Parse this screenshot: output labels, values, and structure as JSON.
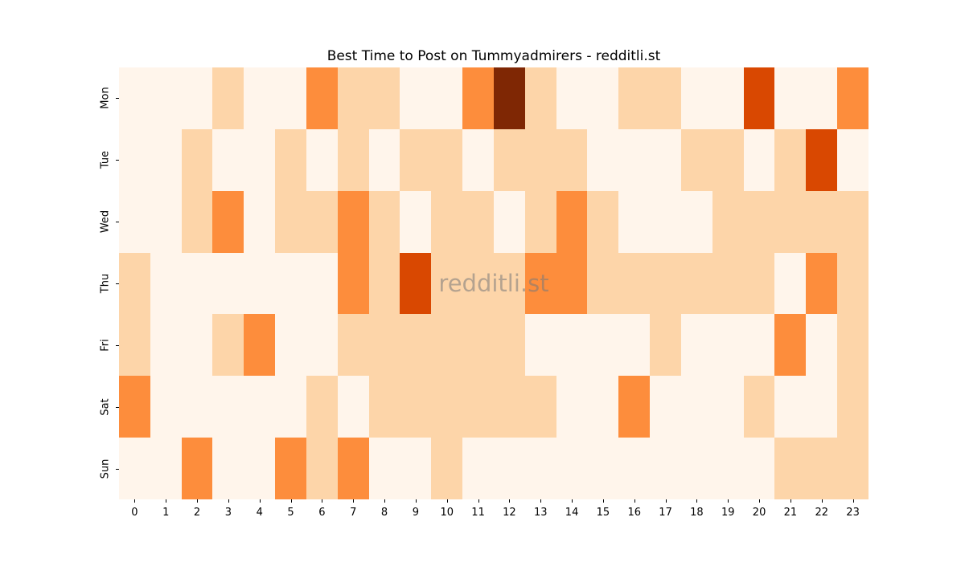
{
  "title": "Best Time to Post on Tummyadmirers - redditli.st",
  "watermark": "redditli.st",
  "chart_data": {
    "type": "heatmap",
    "title": "Best Time to Post on Tummyadmirers - redditli.st",
    "xlabel": "",
    "ylabel": "",
    "x_labels": [
      "0",
      "1",
      "2",
      "3",
      "4",
      "5",
      "6",
      "7",
      "8",
      "9",
      "10",
      "11",
      "12",
      "13",
      "14",
      "15",
      "16",
      "17",
      "18",
      "19",
      "20",
      "21",
      "22",
      "23"
    ],
    "y_labels": [
      "Mon",
      "Tue",
      "Wed",
      "Thu",
      "Fri",
      "Sat",
      "Sun"
    ],
    "value_scale": "relative posting activity, 0 (low) to 4 (high), estimated from color intensity",
    "values": [
      [
        0,
        0,
        0,
        1,
        0,
        0,
        2,
        1,
        1,
        0,
        0,
        2,
        4,
        1,
        0,
        0,
        1,
        1,
        0,
        0,
        3,
        0,
        0,
        2
      ],
      [
        0,
        0,
        1,
        0,
        0,
        1,
        0,
        1,
        0,
        1,
        1,
        0,
        1,
        1,
        1,
        0,
        0,
        0,
        1,
        1,
        0,
        1,
        3,
        0
      ],
      [
        0,
        0,
        1,
        2,
        0,
        1,
        1,
        2,
        1,
        0,
        1,
        1,
        0,
        1,
        2,
        1,
        0,
        0,
        0,
        1,
        1,
        1,
        1,
        1
      ],
      [
        1,
        0,
        0,
        0,
        0,
        0,
        0,
        2,
        1,
        3,
        1,
        1,
        1,
        2,
        2,
        1,
        1,
        1,
        1,
        1,
        1,
        0,
        2,
        1
      ],
      [
        1,
        0,
        0,
        1,
        2,
        0,
        0,
        1,
        1,
        1,
        1,
        1,
        1,
        0,
        0,
        0,
        0,
        1,
        0,
        0,
        0,
        2,
        0,
        1
      ],
      [
        2,
        0,
        0,
        0,
        0,
        0,
        1,
        0,
        1,
        1,
        1,
        1,
        1,
        1,
        0,
        0,
        2,
        0,
        0,
        0,
        1,
        0,
        0,
        1
      ],
      [
        0,
        0,
        2,
        0,
        0,
        2,
        1,
        2,
        0,
        0,
        1,
        0,
        0,
        0,
        0,
        0,
        0,
        0,
        0,
        0,
        0,
        1,
        1,
        1
      ]
    ],
    "colors": {
      "0": "#fff5eb",
      "1": "#fdd5a9",
      "2": "#fd8d3c",
      "3": "#d94801",
      "4": "#7f2704"
    },
    "legend": "none",
    "grid": false,
    "colormap": "Oranges"
  }
}
